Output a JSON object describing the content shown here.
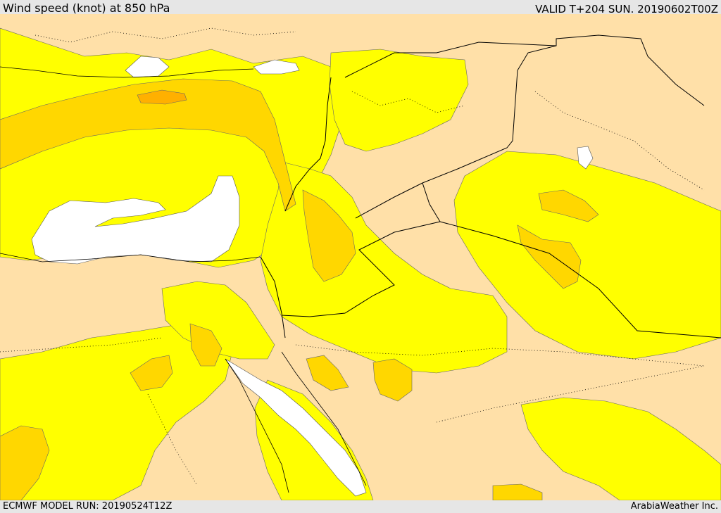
{
  "header": {
    "title": "Wind speed (knot) at 850 hPa",
    "valid": "VALID T+204 SUN. 20190602T00Z"
  },
  "footer": {
    "model_run": "ECMWF MODEL RUN: 20190524T12Z",
    "credit": "ArabiaWeather Inc."
  },
  "map": {
    "colors": {
      "calm": "#ffffff",
      "low": "#ffe0a8",
      "moderate": "#ffff00",
      "fresh": "#ffd700",
      "strong": "#ffb000",
      "border": "#000000"
    },
    "icons": [
      "country-border-line",
      "coastline"
    ]
  }
}
